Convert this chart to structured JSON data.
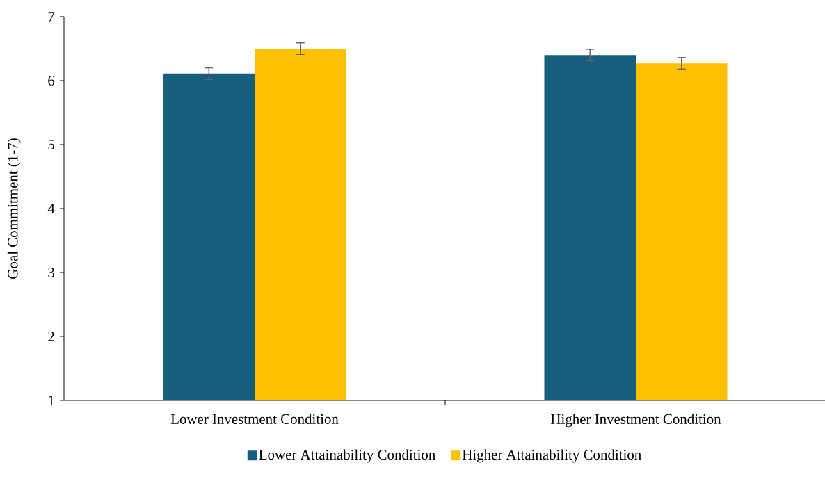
{
  "chart_data": {
    "type": "bar",
    "ylabel": "Goal Commitment (1-7)",
    "categories": [
      "Lower Investment Condition",
      "Higher Investment Condition"
    ],
    "series": [
      {
        "name": "Lower Attainability Condition",
        "color": "#175e7f",
        "values": [
          6.11,
          6.4
        ],
        "errors": [
          0.09,
          0.09
        ]
      },
      {
        "name": "Higher Attainability Condition",
        "color": "#ffc000",
        "values": [
          6.5,
          6.27
        ],
        "errors": [
          0.09,
          0.09
        ]
      }
    ],
    "ylim": [
      1,
      7
    ],
    "yticks": [
      1,
      2,
      3,
      4,
      5,
      6,
      7
    ],
    "grid": false,
    "legend": "bottom"
  }
}
